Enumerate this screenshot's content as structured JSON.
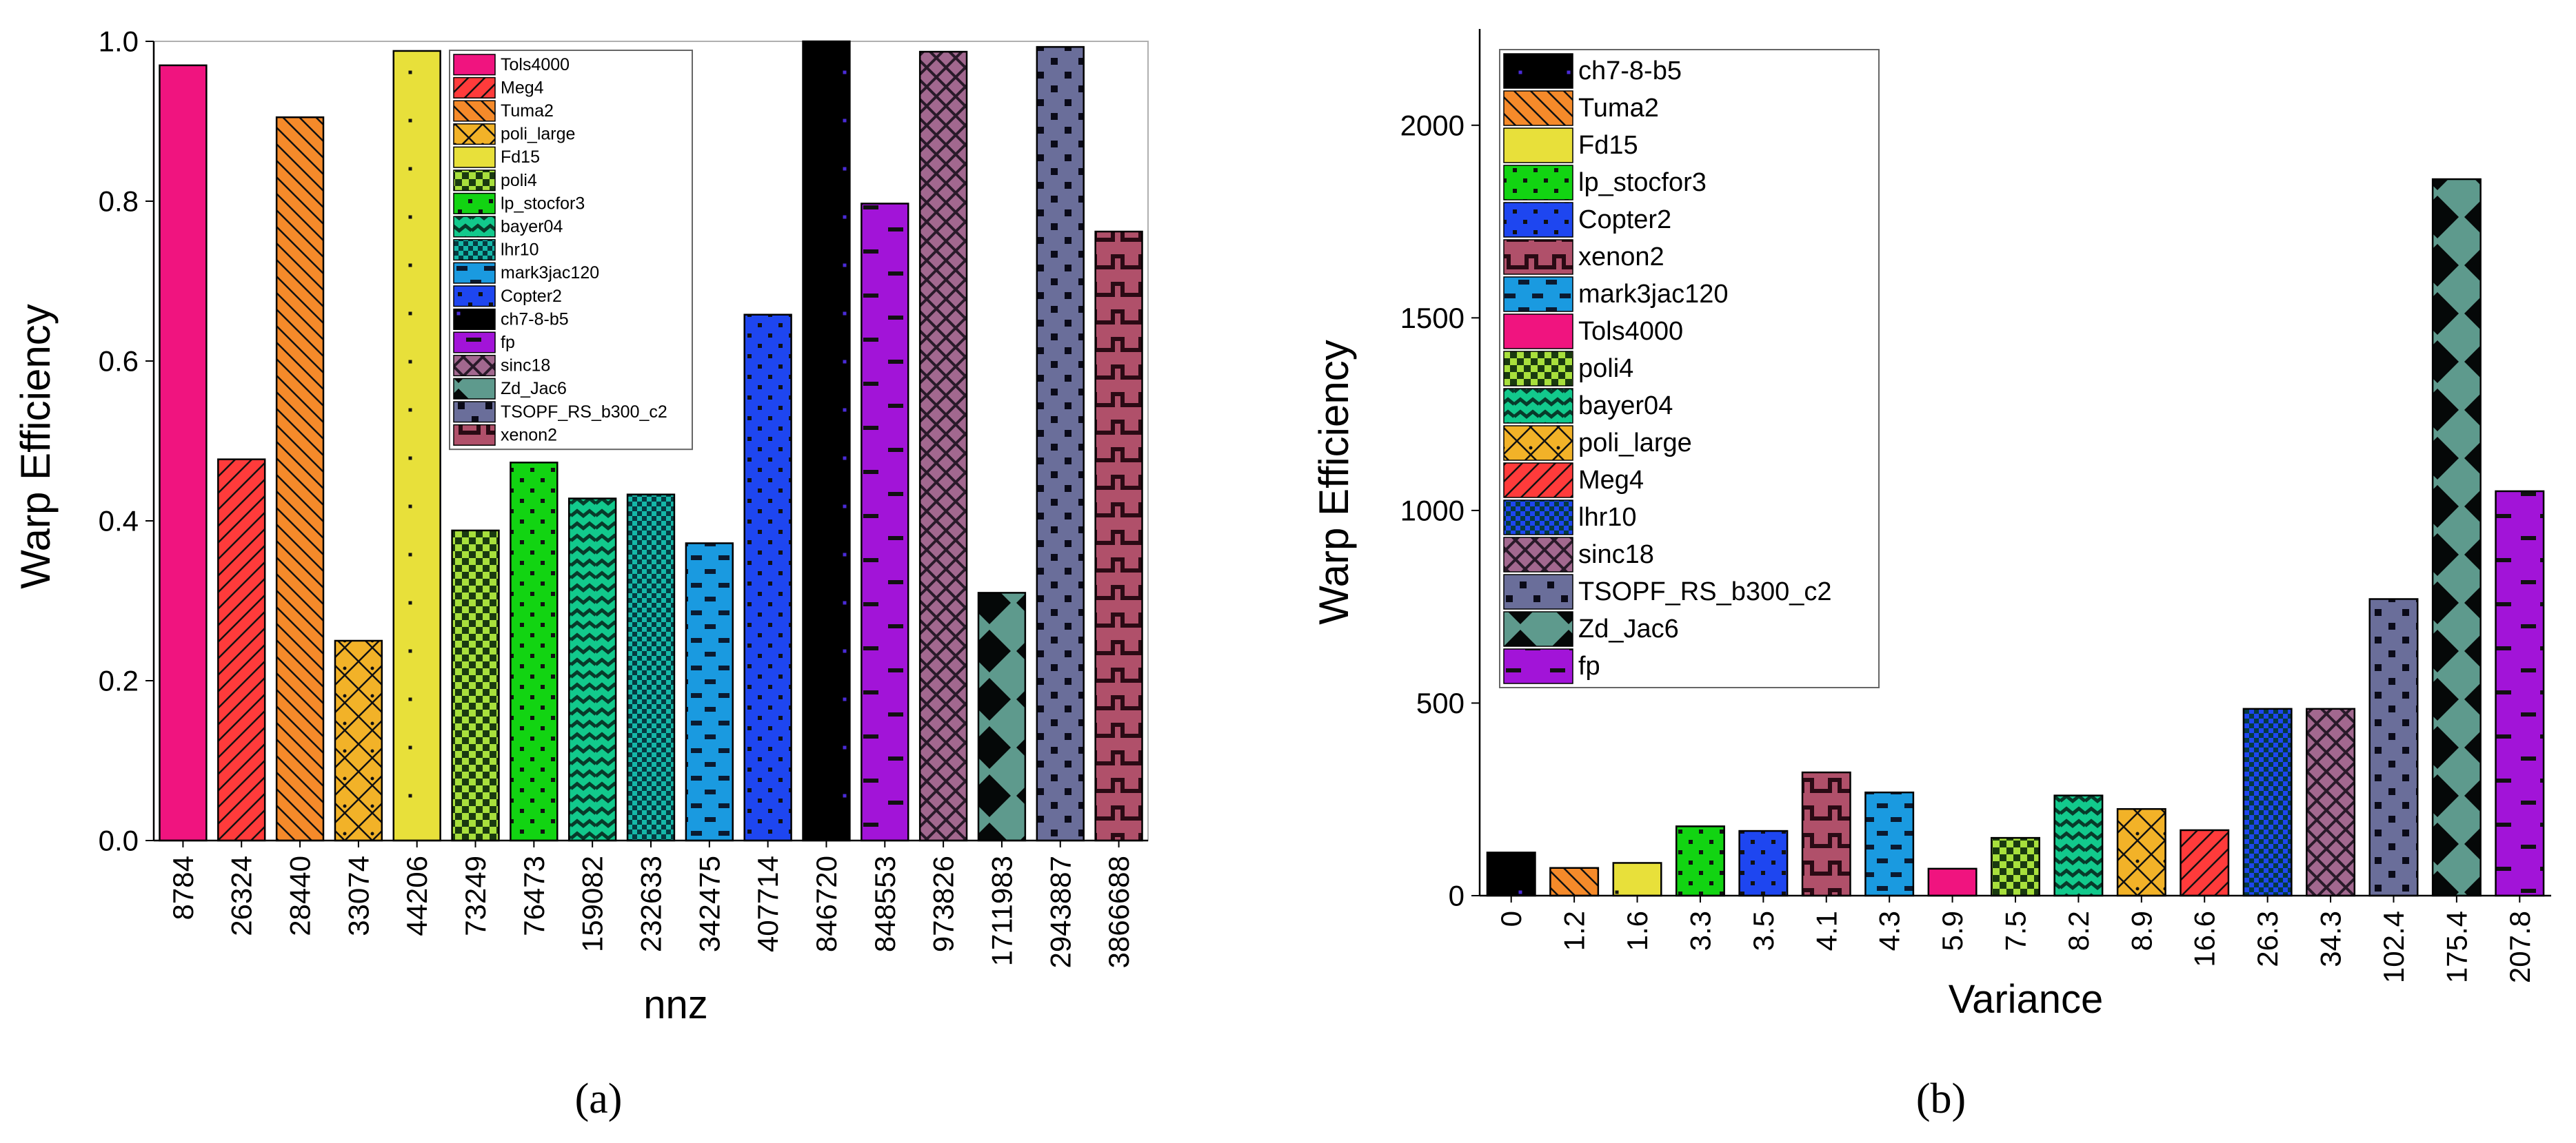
{
  "chart_data": [
    {
      "type": "bar",
      "panel_label": "(a)",
      "xlabel": "nnz",
      "ylabel": "Warp Efficiency",
      "ylim": [
        0,
        1.0
      ],
      "yticks": [
        0.0,
        0.2,
        0.4,
        0.6,
        0.8,
        1.0
      ],
      "ytick_labels": [
        "0.0",
        "0.2",
        "0.4",
        "0.6",
        "0.8",
        "1.0"
      ],
      "legend_position": "top-center",
      "categories": [
        "8784",
        "26324",
        "28440",
        "33074",
        "44206",
        "73249",
        "76473",
        "159082",
        "232633",
        "342475",
        "407714",
        "846720",
        "848553",
        "973826",
        "1711983",
        "2943887",
        "3866688"
      ],
      "series": [
        {
          "name": "Tols4000",
          "category": "8784",
          "value": 0.97,
          "color": "#F0147F",
          "pattern": "solid"
        },
        {
          "name": "Meg4",
          "category": "26324",
          "value": 0.477,
          "color": "#FF3B3B",
          "pattern": "diag-right"
        },
        {
          "name": "Tuma2",
          "category": "28440",
          "value": 0.905,
          "color": "#F58A2A",
          "pattern": "diag-left"
        },
        {
          "name": "poli_large",
          "category": "33074",
          "value": 0.25,
          "color": "#F2B228",
          "pattern": "cross"
        },
        {
          "name": "Fd15",
          "category": "44206",
          "value": 0.988,
          "color": "#E8E03A",
          "pattern": "sparse-dots"
        },
        {
          "name": "poli4",
          "category": "73249",
          "value": 0.388,
          "color": "#A8E03C",
          "pattern": "checker"
        },
        {
          "name": "lp_stocfor3",
          "category": "76473",
          "value": 0.473,
          "color": "#12D412",
          "pattern": "dots"
        },
        {
          "name": "bayer04",
          "category": "159082",
          "value": 0.428,
          "color": "#12C98C",
          "pattern": "wave"
        },
        {
          "name": "lhr10",
          "category": "232633",
          "value": 0.433,
          "color": "#15B8A8",
          "pattern": "checker-fine"
        },
        {
          "name": "mark3jac120",
          "category": "342475",
          "value": 0.372,
          "color": "#1A9AE0",
          "pattern": "brick"
        },
        {
          "name": "Copter2",
          "category": "407714",
          "value": 0.658,
          "color": "#1E46F0",
          "pattern": "dots"
        },
        {
          "name": "ch7-8-b5",
          "category": "846720",
          "value": 1.0,
          "color": "#000000",
          "pattern": "sparse-dots"
        },
        {
          "name": "fp",
          "category": "848553",
          "value": 0.797,
          "color": "#A214D8",
          "pattern": "dashes"
        },
        {
          "name": "sinc18",
          "category": "973826",
          "value": 0.987,
          "color": "#A2688F",
          "pattern": "zigzag"
        },
        {
          "name": "Zd_Jac6",
          "category": "1711983",
          "value": 0.31,
          "color": "#5E9A8D",
          "pattern": "diamonds"
        },
        {
          "name": "TSOPF_RS_b300_c2",
          "category": "2943887",
          "value": 0.993,
          "color": "#6A6E9A",
          "pattern": "squares"
        },
        {
          "name": "xenon2",
          "category": "3866688",
          "value": 0.762,
          "color": "#B0506A",
          "pattern": "steps"
        }
      ]
    },
    {
      "type": "bar",
      "panel_label": "(b)",
      "xlabel": "Variance",
      "ylabel": "Warp Efficiency",
      "ylim": [
        0,
        2250
      ],
      "yticks": [
        0,
        500,
        1000,
        1500,
        2000
      ],
      "ytick_labels": [
        "0",
        "500",
        "1000",
        "1500",
        "2000"
      ],
      "legend_position": "top-left",
      "categories": [
        "0",
        "1.2",
        "1.6",
        "3.3",
        "3.5",
        "4.1",
        "4.3",
        "5.9",
        "7.5",
        "8.2",
        "8.9",
        "16.6",
        "26.3",
        "34.3",
        "102.4",
        "175.4",
        "207.8"
      ],
      "series": [
        {
          "name": "ch7-8-b5",
          "category": "0",
          "value": 112,
          "color": "#000000",
          "pattern": "sparse-dots"
        },
        {
          "name": "Tuma2",
          "category": "1.2",
          "value": 72,
          "color": "#F58A2A",
          "pattern": "diag-left"
        },
        {
          "name": "Fd15",
          "category": "1.6",
          "value": 85,
          "color": "#E8E03A",
          "pattern": "sparse-dots"
        },
        {
          "name": "lp_stocfor3",
          "category": "3.3",
          "value": 180,
          "color": "#12D412",
          "pattern": "dots"
        },
        {
          "name": "Copter2",
          "category": "3.5",
          "value": 168,
          "color": "#1E46F0",
          "pattern": "dots"
        },
        {
          "name": "xenon2",
          "category": "4.1",
          "value": 320,
          "color": "#B0506A",
          "pattern": "steps"
        },
        {
          "name": "mark3jac120",
          "category": "4.3",
          "value": 268,
          "color": "#1A9AE0",
          "pattern": "brick"
        },
        {
          "name": "Tols4000",
          "category": "5.9",
          "value": 70,
          "color": "#F0147F",
          "pattern": "solid"
        },
        {
          "name": "poli4",
          "category": "7.5",
          "value": 150,
          "color": "#A8E03C",
          "pattern": "checker"
        },
        {
          "name": "bayer04",
          "category": "8.2",
          "value": 260,
          "color": "#12C98C",
          "pattern": "wave"
        },
        {
          "name": "poli_large",
          "category": "8.9",
          "value": 225,
          "color": "#F2B228",
          "pattern": "cross"
        },
        {
          "name": "Meg4",
          "category": "16.6",
          "value": 170,
          "color": "#FF3B3B",
          "pattern": "diag-right"
        },
        {
          "name": "lhr10",
          "category": "26.3",
          "value": 485,
          "color": "#1E46F0",
          "pattern": "checker-fine"
        },
        {
          "name": "sinc18",
          "category": "34.3",
          "value": 485,
          "color": "#A2688F",
          "pattern": "zigzag"
        },
        {
          "name": "TSOPF_RS_b300_c2",
          "category": "102.4",
          "value": 770,
          "color": "#6A6E9A",
          "pattern": "squares"
        },
        {
          "name": "Zd_Jac6",
          "category": "175.4",
          "value": 1860,
          "color": "#5E9A8D",
          "pattern": "diamonds"
        },
        {
          "name": "fp",
          "category": "207.8",
          "value": 1050,
          "color": "#A214D8",
          "pattern": "dashes"
        }
      ],
      "legend_order": [
        "ch7-8-b5",
        "Tuma2",
        "Fd15",
        "lp_stocfor3",
        "Copter2",
        "xenon2",
        "mark3jac120",
        "Tols4000",
        "poli4",
        "bayer04",
        "poli_large",
        "Meg4",
        "lhr10",
        "sinc18",
        "TSOPF_RS_b300_c2",
        "Zd_Jac6",
        "fp"
      ]
    }
  ]
}
